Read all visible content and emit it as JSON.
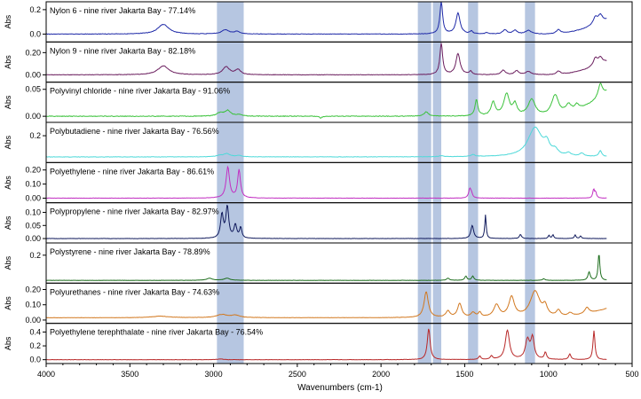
{
  "chart_data": {
    "type": "line",
    "xlabel": "Wavenumbers (cm-1)",
    "ylabel": "Abs",
    "x_reversed": true,
    "xlim": [
      4000,
      500
    ],
    "xticks": [
      {
        "value": 4000,
        "label": "4000"
      },
      {
        "value": 3500,
        "label": "3500"
      },
      {
        "value": 3000,
        "label": "3000"
      },
      {
        "value": 2500,
        "label": "2500"
      },
      {
        "value": 2000,
        "label": "2000"
      },
      {
        "value": 1500,
        "label": "1500"
      },
      {
        "value": 1000,
        "label": "1000"
      },
      {
        "value": 500,
        "label": "500"
      }
    ],
    "highlight_bands": [
      [
        2980,
        2820
      ],
      [
        1780,
        1700
      ],
      [
        1690,
        1640
      ],
      [
        1480,
        1420
      ],
      [
        1140,
        1080
      ]
    ],
    "band_color": "#a9bcdc",
    "panels": [
      {
        "name": "Nylon 6 - nine river Jakarta Bay - 77.14%",
        "color": "#1f2aa8",
        "ylim": [
          -0.05,
          0.25
        ],
        "yticks": [
          {
            "value": 0.0,
            "label": "0.0"
          },
          {
            "value": 0.2,
            "label": "0.2"
          }
        ],
        "baseline": 0.0,
        "bend": 0.01,
        "baseline_tail": 0.01,
        "noise": 0.002,
        "tail_start": 700,
        "tail_end": 0.12,
        "peaks": [
          [
            3300,
            0.08,
            40
          ],
          [
            2930,
            0.035,
            25
          ],
          [
            2860,
            0.02,
            20
          ],
          [
            1640,
            0.26,
            10
          ],
          [
            1540,
            0.17,
            15
          ],
          [
            1460,
            0.02,
            10
          ],
          [
            1370,
            0.01,
            10
          ],
          [
            1260,
            0.035,
            15
          ],
          [
            1200,
            0.03,
            15
          ],
          [
            1120,
            0.03,
            20
          ],
          [
            940,
            0.035,
            15
          ],
          [
            720,
            0.06,
            15
          ],
          [
            690,
            0.06,
            15
          ]
        ]
      },
      {
        "name": "Nylon 9 - nine river Jakarta Bay - 82.18%",
        "color": "#6b1e5e",
        "ylim": [
          -0.05,
          0.28
        ],
        "yticks": [
          {
            "value": 0.0,
            "label": "0.00"
          },
          {
            "value": 0.2,
            "label": "0.20"
          }
        ],
        "baseline": 0.0,
        "bend": 0.01,
        "baseline_tail": 0.01,
        "noise": 0.002,
        "tail_start": 700,
        "tail_end": 0.12,
        "peaks": [
          [
            3300,
            0.08,
            40
          ],
          [
            2925,
            0.07,
            25
          ],
          [
            2855,
            0.045,
            20
          ],
          [
            1640,
            0.28,
            10
          ],
          [
            1540,
            0.19,
            15
          ],
          [
            1465,
            0.03,
            10
          ],
          [
            1270,
            0.04,
            15
          ],
          [
            1190,
            0.035,
            15
          ],
          [
            1120,
            0.03,
            20
          ],
          [
            940,
            0.03,
            15
          ],
          [
            720,
            0.07,
            15
          ],
          [
            690,
            0.06,
            15
          ]
        ]
      },
      {
        "name": "Polyvinyl chloride - nine river Jakarta Bay - 91.06%",
        "color": "#3bc23b",
        "ylim": [
          -0.008,
          0.06
        ],
        "yticks": [
          {
            "value": 0.0,
            "label": "0.00"
          },
          {
            "value": 0.05,
            "label": "0.05"
          }
        ],
        "baseline": 0.0,
        "bend": 0.0,
        "baseline_tail": 0.0,
        "noise": 0.0006,
        "tail_start": 700,
        "tail_end": 0.045,
        "peaks": [
          [
            2960,
            0.006,
            25
          ],
          [
            2915,
            0.01,
            20
          ],
          [
            2850,
            0.003,
            20
          ],
          [
            2360,
            -0.003,
            10
          ],
          [
            1730,
            0.008,
            15
          ],
          [
            1430,
            0.03,
            10
          ],
          [
            1330,
            0.025,
            15
          ],
          [
            1250,
            0.04,
            20
          ],
          [
            1200,
            0.02,
            15
          ],
          [
            1100,
            0.03,
            25
          ],
          [
            960,
            0.038,
            25
          ],
          [
            880,
            0.015,
            20
          ],
          [
            830,
            0.01,
            15
          ],
          [
            690,
            0.025,
            15
          ]
        ]
      },
      {
        "name": "Polybutadiene - nine river Jakarta Bay - 76.56%",
        "color": "#4ed9d9",
        "ylim": [
          -0.06,
          0.32
        ],
        "yticks": [
          {
            "value": 0.2,
            "label": "0.2"
          }
        ],
        "baseline": -0.02,
        "bend": 0.0,
        "baseline_tail": 0.0,
        "noise": 0.002,
        "tail_start": 700,
        "tail_end": 0.0,
        "peaks": [
          [
            2960,
            0.015,
            30
          ],
          [
            2920,
            0.03,
            20
          ],
          [
            2850,
            0.015,
            20
          ],
          [
            1640,
            0.01,
            15
          ],
          [
            1450,
            0.02,
            15
          ],
          [
            1080,
            0.3,
            50
          ],
          [
            1010,
            0.1,
            20
          ],
          [
            960,
            0.05,
            20
          ],
          [
            880,
            0.03,
            15
          ],
          [
            800,
            0.03,
            15
          ],
          [
            690,
            0.06,
            10
          ]
        ]
      },
      {
        "name": "Polyethylene - nine river Jakarta Bay - 86.61%",
        "color": "#c22fc2",
        "ylim": [
          -0.02,
          0.24
        ],
        "yticks": [
          {
            "value": 0.0,
            "label": "0.00"
          },
          {
            "value": 0.1,
            "label": "0.10"
          },
          {
            "value": 0.2,
            "label": "0.20"
          }
        ],
        "baseline": 0.0,
        "bend": 0.0,
        "baseline_tail": 0.0,
        "noise": 0.001,
        "tail_start": 700,
        "tail_end": 0.0,
        "peaks": [
          [
            2915,
            0.22,
            12
          ],
          [
            2848,
            0.2,
            10
          ],
          [
            1470,
            0.06,
            8
          ],
          [
            1460,
            0.03,
            8
          ],
          [
            730,
            0.06,
            6
          ],
          [
            718,
            0.04,
            6
          ]
        ]
      },
      {
        "name": "Polypropylene - nine river Jakarta Bay - 82.97%",
        "color": "#101a5c",
        "ylim": [
          -0.01,
          0.13
        ],
        "yticks": [
          {
            "value": 0.0,
            "label": "0.00"
          },
          {
            "value": 0.05,
            "label": "0.05"
          },
          {
            "value": 0.1,
            "label": "0.10"
          }
        ],
        "baseline": 0.0,
        "bend": 0.0,
        "baseline_tail": 0.0,
        "noise": 0.0005,
        "tail_start": 700,
        "tail_end": 0.0,
        "peaks": [
          [
            2950,
            0.09,
            10
          ],
          [
            2918,
            0.12,
            10
          ],
          [
            2870,
            0.05,
            10
          ],
          [
            2838,
            0.04,
            8
          ],
          [
            1455,
            0.05,
            10
          ],
          [
            1376,
            0.09,
            5
          ],
          [
            1167,
            0.015,
            8
          ],
          [
            997,
            0.012,
            6
          ],
          [
            973,
            0.014,
            6
          ],
          [
            840,
            0.014,
            6
          ],
          [
            808,
            0.01,
            6
          ]
        ]
      },
      {
        "name": "Polystyrene - nine river Jakarta Bay - 78.89%",
        "color": "#1e6e1e",
        "ylim": [
          -0.05,
          0.3
        ],
        "yticks": [
          {
            "value": 0.2,
            "label": "0.2"
          }
        ],
        "baseline": -0.04,
        "bend": 0.0,
        "baseline_tail": 0.0,
        "noise": 0.001,
        "tail_start": 700,
        "tail_end": 0.0,
        "peaks": [
          [
            3025,
            0.02,
            20
          ],
          [
            2920,
            0.02,
            20
          ],
          [
            1600,
            0.02,
            10
          ],
          [
            1493,
            0.04,
            8
          ],
          [
            1452,
            0.04,
            8
          ],
          [
            1028,
            0.015,
            8
          ],
          [
            757,
            0.08,
            8
          ],
          [
            698,
            0.26,
            6
          ]
        ]
      },
      {
        "name": "Polyurethanes - nine river Jakarta Bay - 74.63%",
        "color": "#d2781f",
        "ylim": [
          -0.01,
          0.23
        ],
        "yticks": [
          {
            "value": 0.0,
            "label": "0.00"
          },
          {
            "value": 0.1,
            "label": "0.10"
          },
          {
            "value": 0.2,
            "label": "0.20"
          }
        ],
        "baseline": 0.015,
        "bend": 0.0,
        "baseline_tail": 0.02,
        "noise": 0.001,
        "tail_start": 700,
        "tail_end": 0.06,
        "peaks": [
          [
            3320,
            0.01,
            60
          ],
          [
            2950,
            0.02,
            40
          ],
          [
            2870,
            0.015,
            30
          ],
          [
            1730,
            0.17,
            15
          ],
          [
            1600,
            0.04,
            15
          ],
          [
            1530,
            0.09,
            15
          ],
          [
            1450,
            0.03,
            15
          ],
          [
            1410,
            0.03,
            10
          ],
          [
            1310,
            0.08,
            20
          ],
          [
            1220,
            0.13,
            20
          ],
          [
            1080,
            0.17,
            35
          ],
          [
            1020,
            0.06,
            15
          ],
          [
            940,
            0.04,
            15
          ],
          [
            870,
            0.02,
            15
          ],
          [
            770,
            0.04,
            15
          ]
        ]
      },
      {
        "name": "Polyethylene terephthalate - nine river Jakarta Bay - 76.54%",
        "color": "#b82828",
        "ylim": [
          -0.03,
          0.5
        ],
        "yticks": [
          {
            "value": 0.0,
            "label": "0.0"
          },
          {
            "value": 0.2,
            "label": "0.2"
          },
          {
            "value": 0.4,
            "label": "0.4"
          }
        ],
        "baseline": 0.0,
        "bend": 0.0,
        "baseline_tail": 0.0,
        "noise": 0.002,
        "tail_start": 700,
        "tail_end": 0.0,
        "peaks": [
          [
            2960,
            0.01,
            20
          ],
          [
            1715,
            0.45,
            10
          ],
          [
            1410,
            0.05,
            8
          ],
          [
            1340,
            0.05,
            8
          ],
          [
            1245,
            0.42,
            15
          ],
          [
            1125,
            0.28,
            15
          ],
          [
            1095,
            0.3,
            12
          ],
          [
            1018,
            0.1,
            8
          ],
          [
            872,
            0.08,
            8
          ],
          [
            728,
            0.42,
            7
          ]
        ]
      }
    ]
  }
}
